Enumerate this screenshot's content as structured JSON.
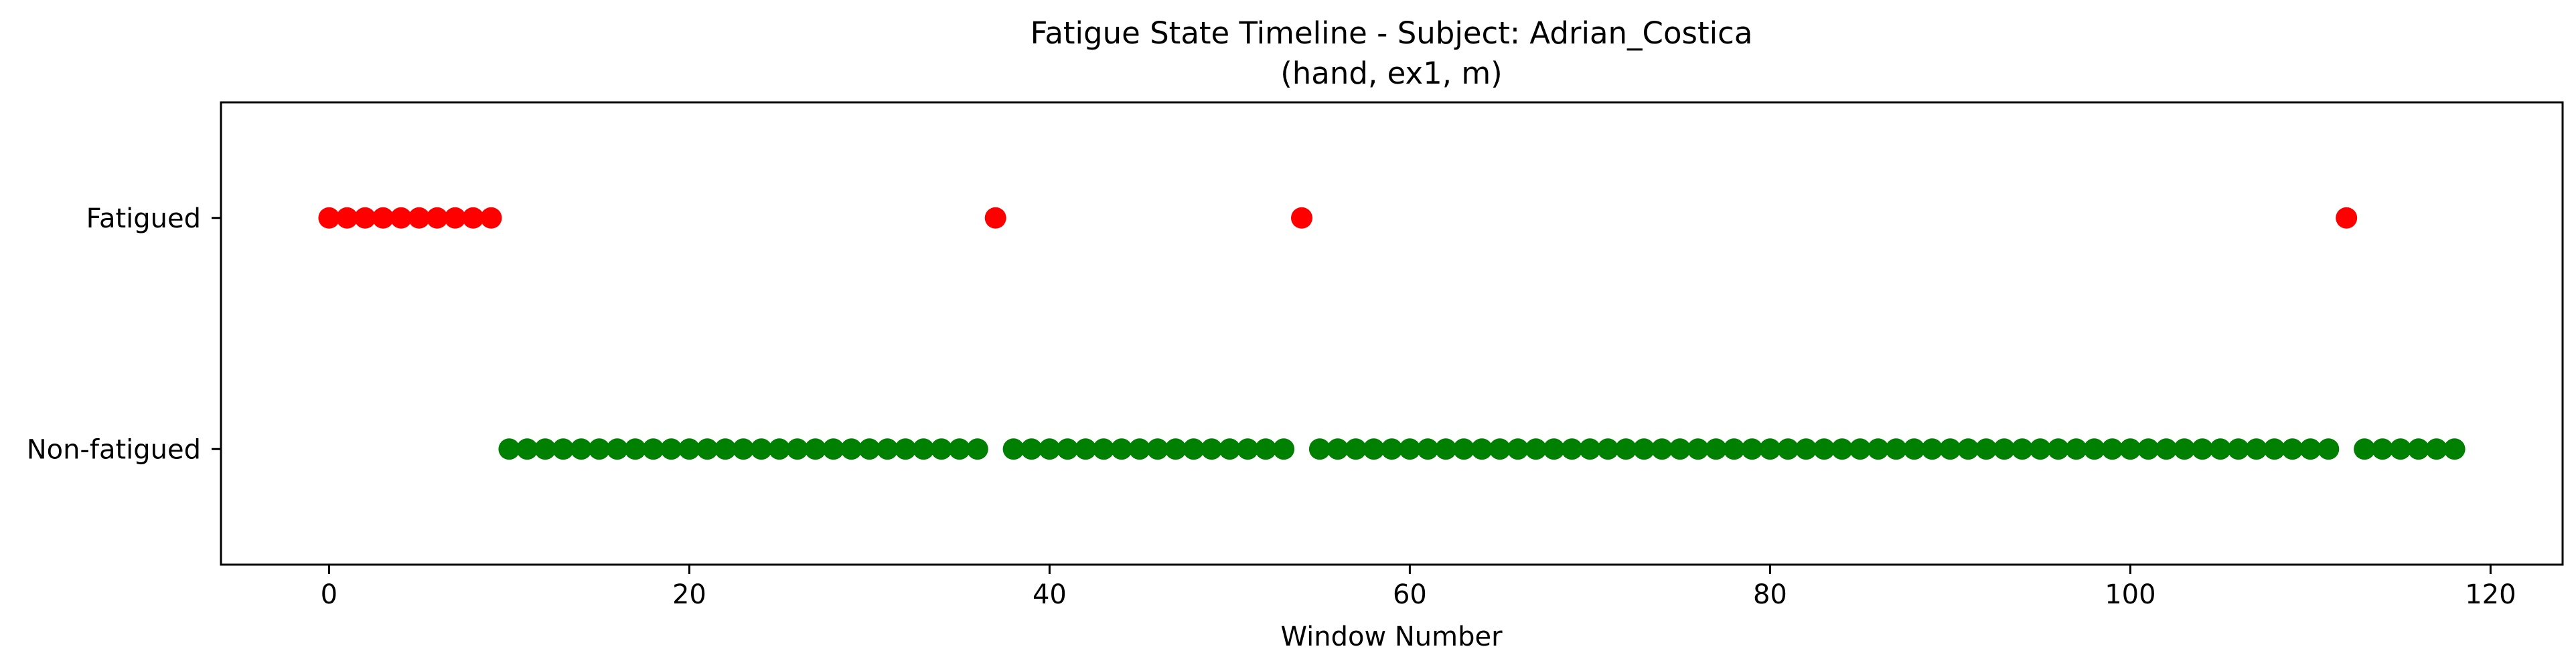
{
  "chart_data": {
    "type": "scatter",
    "title": "Fatigue State Timeline - Subject: Adrian_Costica",
    "subtitle": "(hand, ex1, m)",
    "xlabel": "Window Number",
    "ylabel": "",
    "xlim": [
      -6,
      124
    ],
    "ylim": [
      -0.5,
      1.5
    ],
    "x_ticks": [
      0,
      20,
      40,
      60,
      80,
      100,
      120
    ],
    "y_ticks": [
      {
        "value": 1,
        "label": "Fatigued"
      },
      {
        "value": 0,
        "label": "Non-fatigued"
      }
    ],
    "grid": false,
    "legend": "none",
    "colors": {
      "fatigued": "#ff0000",
      "non_fatigued": "#008000"
    },
    "series": [
      {
        "key": "fatigued",
        "y": 1,
        "x": [
          0,
          1,
          2,
          3,
          4,
          5,
          6,
          7,
          8,
          9,
          37,
          54,
          112
        ]
      },
      {
        "key": "non_fatigued",
        "y": 0,
        "x": [
          10,
          11,
          12,
          13,
          14,
          15,
          16,
          17,
          18,
          19,
          20,
          21,
          22,
          23,
          24,
          25,
          26,
          27,
          28,
          29,
          30,
          31,
          32,
          33,
          34,
          35,
          36,
          38,
          39,
          40,
          41,
          42,
          43,
          44,
          45,
          46,
          47,
          48,
          49,
          50,
          51,
          52,
          53,
          55,
          56,
          57,
          58,
          59,
          60,
          61,
          62,
          63,
          64,
          65,
          66,
          67,
          68,
          69,
          70,
          71,
          72,
          73,
          74,
          75,
          76,
          77,
          78,
          79,
          80,
          81,
          82,
          83,
          84,
          85,
          86,
          87,
          88,
          89,
          90,
          91,
          92,
          93,
          94,
          95,
          96,
          97,
          98,
          99,
          100,
          101,
          102,
          103,
          104,
          105,
          106,
          107,
          108,
          109,
          110,
          111,
          113,
          114,
          115,
          116,
          117,
          118
        ]
      }
    ]
  }
}
